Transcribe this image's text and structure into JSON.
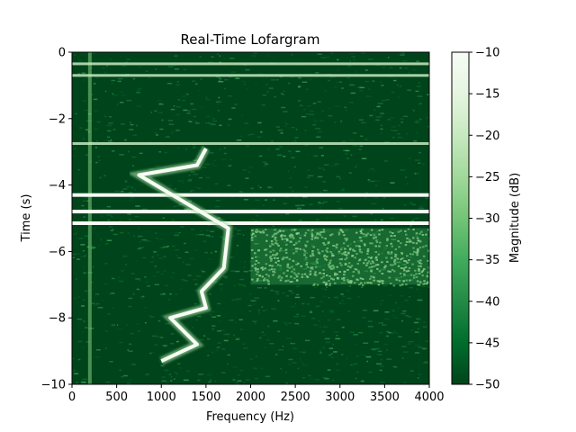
{
  "chart_data": {
    "type": "heatmap",
    "title": "Real-Time Lofargram",
    "xlabel": "Frequency (Hz)",
    "ylabel": "Time (s)",
    "xlim": [
      0,
      4000
    ],
    "ylim": [
      -10,
      0
    ],
    "x_ticks": [
      0,
      500,
      1000,
      1500,
      2000,
      2500,
      3000,
      3500,
      4000
    ],
    "y_ticks": [
      0,
      -2,
      -4,
      -6,
      -8,
      -10
    ],
    "colorbar": {
      "label": "Magnitude (dB)",
      "range": [
        -50,
        -10
      ],
      "ticks": [
        -10,
        -15,
        -20,
        -25,
        -30,
        -35,
        -40,
        -45,
        -50
      ],
      "colormap": "Greens",
      "color_low": "#00441b",
      "color_high": "#f7fcf5"
    },
    "features": {
      "horizontal_lines_time_s": [
        -0.35,
        -0.7,
        -2.75,
        -4.3,
        -4.8,
        -5.15
      ],
      "low_frequency_line_hz": 200,
      "tonal_track": [
        {
          "t": -2.9,
          "f": 1500
        },
        {
          "t": -3.4,
          "f": 1400
        },
        {
          "t": -3.7,
          "f": 750
        },
        {
          "t": -5.3,
          "f": 1750
        },
        {
          "t": -6.5,
          "f": 1700
        },
        {
          "t": -7.2,
          "f": 1450
        },
        {
          "t": -7.7,
          "f": 1500
        },
        {
          "t": -8.0,
          "f": 1100
        },
        {
          "t": -8.8,
          "f": 1400
        },
        {
          "t": -9.3,
          "f": 1000
        }
      ],
      "broadband_region": {
        "f_min": 2000,
        "f_max": 4000,
        "t_min": -7.0,
        "t_max": -5.3
      }
    }
  }
}
